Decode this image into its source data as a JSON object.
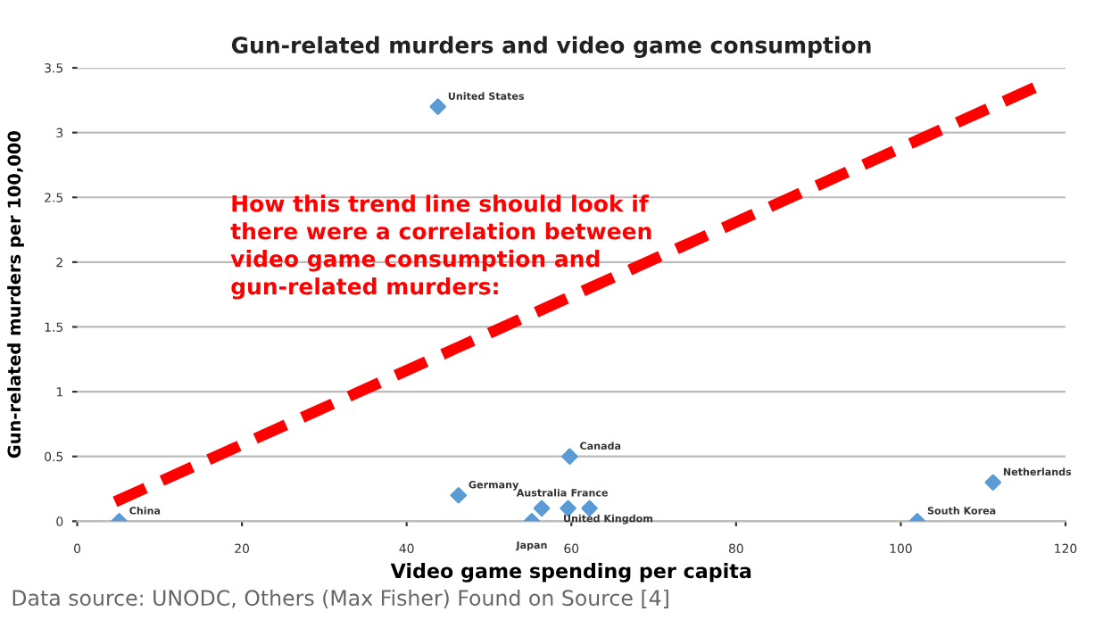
{
  "chart_data": {
    "type": "scatter",
    "title": "Gun-related murders and video game consumption",
    "xlabel": "Video game spending per capita",
    "ylabel": "Gun-related murders per 100,000",
    "series": [
      {
        "color": "#5b9bd5",
        "marker": "diamond",
        "x": [
          5.1,
          46.3,
          55.2,
          56.4,
          59.6,
          59.8,
          62.2,
          102,
          111.2,
          43.8
        ],
        "values": [
          0,
          0.2,
          0,
          0.1,
          0.1,
          0.5,
          0.1,
          0,
          0.3,
          3.2
        ]
      },
      {
        "type": "line",
        "color": "#ff0000",
        "line_style": "dashed",
        "marker": "none",
        "x": [
          4.6,
          117.4
        ],
        "values": [
          0.15,
          3.38
        ]
      }
    ],
    "xlim": [
      0,
      120
    ],
    "xticks": [
      0,
      20,
      40,
      60,
      80,
      100,
      120
    ],
    "ylim": [
      0,
      3.5
    ],
    "yticks": [
      0,
      0.5,
      1,
      1.5,
      2,
      2.5,
      3,
      3.5
    ],
    "grid": "y",
    "annotations": [
      {
        "text": "China",
        "x": 5.1,
        "y": 0
      },
      {
        "text": "Germany",
        "x": 46.3,
        "y": 0.2
      },
      {
        "text": "Japan",
        "x": 55.2,
        "y": 0
      },
      {
        "text": "Australia",
        "x": 56.4,
        "y": 0.1
      },
      {
        "text": "United Kingdom",
        "x": 59.6,
        "y": 0.1
      },
      {
        "text": "Canada",
        "x": 59.8,
        "y": 0.5
      },
      {
        "text": "France",
        "x": 62.2,
        "y": 0.1
      },
      {
        "text": "South Korea",
        "x": 102,
        "y": 0
      },
      {
        "text": "Netherlands",
        "x": 111.2,
        "y": 0.3
      },
      {
        "text": "United States",
        "x": 43.8,
        "y": 3.2
      },
      "How this trend line should look if\nthere were a correlation between\nvideo game consumption and\ngun-related murders:",
      "Data source: UNODC, Others (Max Fisher) Found on Source [4]"
    ]
  }
}
